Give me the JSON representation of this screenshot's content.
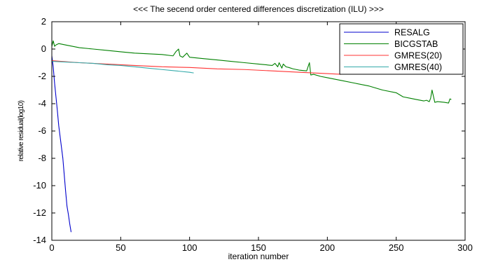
{
  "chart_data": {
    "type": "line",
    "title": "<<< The secend order centered differences discretization (ILU) >>>",
    "xlabel": "iteration number",
    "ylabel": "relative residual(log10)",
    "xlim": [
      0,
      300
    ],
    "ylim": [
      -14,
      2
    ],
    "xticks": [
      "0",
      "50",
      "100",
      "150",
      "200",
      "250",
      "300"
    ],
    "yticks": [
      "2",
      "0",
      "-2",
      "-4",
      "-6",
      "-8",
      "-10",
      "-12",
      "-14"
    ],
    "grid": false,
    "legend": "top-right",
    "series": [
      {
        "name": "RESALG",
        "color": "#0000cc",
        "x": [
          0,
          1,
          2,
          3,
          4,
          5,
          6,
          7,
          8,
          9,
          10,
          11,
          12,
          13,
          14
        ],
        "y": [
          -0.5,
          -1.3,
          -2.5,
          -3.5,
          -4.5,
          -5.6,
          -6.4,
          -7.2,
          -8.0,
          -9.2,
          -10.4,
          -11.5,
          -12.1,
          -12.8,
          -13.4
        ]
      },
      {
        "name": "BICGSTAB",
        "color": "#008000",
        "x": [
          0,
          1,
          2,
          3,
          5,
          10,
          20,
          30,
          40,
          50,
          60,
          70,
          80,
          88,
          90,
          92,
          93,
          95,
          98,
          100,
          110,
          120,
          130,
          140,
          150,
          160,
          162,
          164,
          165,
          167,
          168,
          170,
          172,
          175,
          180,
          185,
          186,
          187,
          188,
          190,
          195,
          200,
          210,
          220,
          230,
          240,
          250,
          255,
          260,
          265,
          270,
          272,
          274,
          275,
          276,
          278,
          280,
          285,
          288,
          289,
          290
        ],
        "y": [
          0.2,
          0.6,
          0.2,
          0.3,
          0.4,
          0.3,
          0.1,
          -0.0,
          -0.1,
          -0.2,
          -0.3,
          -0.35,
          -0.4,
          -0.5,
          -0.2,
          0.0,
          -0.5,
          -0.6,
          -0.3,
          -0.6,
          -0.7,
          -0.8,
          -0.9,
          -1.0,
          -1.1,
          -1.2,
          -1.05,
          -1.3,
          -1.0,
          -1.4,
          -1.1,
          -1.3,
          -1.35,
          -1.45,
          -1.55,
          -1.6,
          -1.3,
          -1.0,
          -1.9,
          -1.85,
          -2.0,
          -2.1,
          -2.3,
          -2.5,
          -2.7,
          -3.0,
          -3.2,
          -3.5,
          -3.6,
          -3.7,
          -3.8,
          -3.75,
          -3.85,
          -3.6,
          -3.0,
          -3.9,
          -3.85,
          -3.9,
          -3.95,
          -3.65,
          -3.7
        ]
      },
      {
        "name": "GMRES(20)",
        "color": "#ff3333",
        "x": [
          0,
          20,
          40,
          60,
          80,
          100,
          120,
          140,
          160,
          180,
          200,
          210
        ],
        "y": [
          -0.85,
          -1.0,
          -1.1,
          -1.2,
          -1.3,
          -1.35,
          -1.45,
          -1.5,
          -1.6,
          -1.7,
          -1.8,
          -1.85
        ]
      },
      {
        "name": "GMRES(40)",
        "color": "#33aaaa",
        "x": [
          0,
          10,
          20,
          30,
          40,
          50,
          60,
          70,
          80,
          90,
          100,
          103
        ],
        "y": [
          -0.9,
          -0.95,
          -1.0,
          -1.05,
          -1.15,
          -1.2,
          -1.3,
          -1.4,
          -1.5,
          -1.6,
          -1.7,
          -1.75
        ]
      }
    ]
  }
}
